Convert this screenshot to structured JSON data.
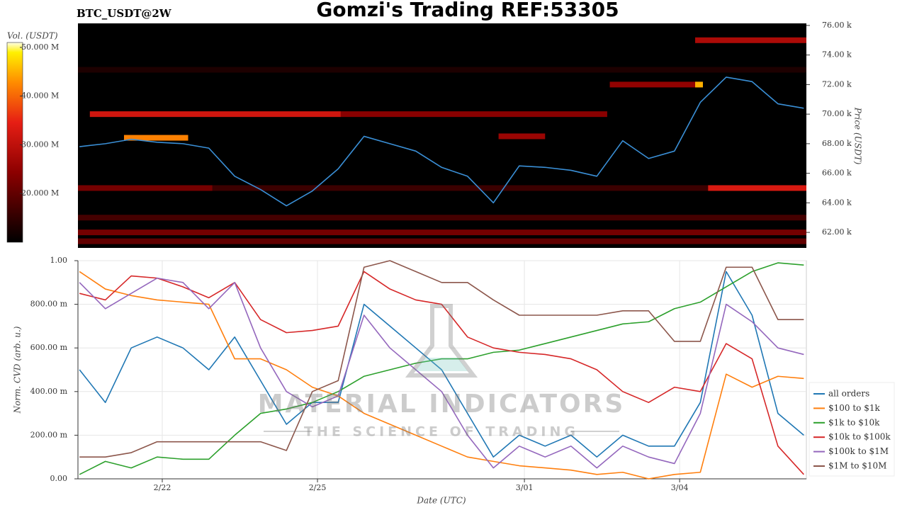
{
  "chart_data": [
    {
      "type": "heatmap",
      "title": "Gomzi's Trading REF:53305",
      "subtitle": "BTC_USDT@2W",
      "y_label": "Price (USDT)",
      "xlim": [
        -1.63,
        12.45
      ],
      "x": [
        -1.6,
        -1.1,
        -0.6,
        -0.1,
        0.4,
        0.9,
        1.4,
        1.9,
        2.4,
        2.9,
        3.4,
        3.9,
        4.4,
        4.9,
        5.4,
        5.9,
        6.4,
        6.9,
        7.4,
        7.9,
        8.4,
        8.9,
        9.4,
        9.9,
        10.4,
        10.9,
        11.4,
        11.9,
        12.4
      ],
      "series": [
        {
          "color": "#3a8fd6",
          "values": [
            67800,
            68000,
            68300,
            68100,
            68000,
            67700,
            65800,
            64900,
            63800,
            64800,
            66300,
            68500,
            68000,
            67500,
            66400,
            65800,
            64000,
            66500,
            66400,
            66200,
            65800,
            68200,
            67000,
            67500,
            70800,
            72500,
            72200,
            70700,
            70400
          ]
        }
      ],
      "ylim": [
        60950,
        76140
      ],
      "yticks": [
        {
          "value": 62000,
          "label": "62.00 k"
        },
        {
          "value": 64000,
          "label": "64.00 k"
        },
        {
          "value": 66000,
          "label": "66.00 k"
        },
        {
          "value": 68000,
          "label": "68.00 k"
        },
        {
          "value": 70000,
          "label": "70.00 k"
        },
        {
          "value": 72000,
          "label": "72.00 k"
        },
        {
          "value": 74000,
          "label": "74.00 k"
        },
        {
          "value": 76000,
          "label": "76.00 k"
        }
      ],
      "colorbar": {
        "label": "Vol. (USDT)",
        "lim": [
          10000000,
          51000000
        ],
        "ticks": [
          {
            "value": 20000000,
            "label": "20.000 M"
          },
          {
            "value": 30000000,
            "label": "30.000 M"
          },
          {
            "value": 40000000,
            "label": "40.000 M"
          },
          {
            "value": 50000000,
            "label": "50.000 M"
          }
        ]
      },
      "bands": [
        {
          "price": 70000,
          "from": -1.4,
          "to": 3.45,
          "volume": 32000000
        },
        {
          "price": 70000,
          "from": 3.45,
          "to": 8.6,
          "volume": 24000000
        },
        {
          "price": 75000,
          "from": 10.3,
          "to": 12.45,
          "volume": 28000000
        },
        {
          "price": 73000,
          "from": -1.63,
          "to": 12.45,
          "volume": 13000000
        },
        {
          "price": 72000,
          "from": 8.65,
          "to": 10.4,
          "volume": 25000000
        },
        {
          "price": 68500,
          "from": 6.5,
          "to": 7.4,
          "volume": 26000000
        },
        {
          "price": 68400,
          "from": -0.74,
          "to": 0.5,
          "volume": 42000000
        },
        {
          "price": 72000,
          "from": 10.3,
          "to": 10.45,
          "volume": 45000000
        },
        {
          "price": 65000,
          "from": -1.63,
          "to": 0.97,
          "volume": 22000000
        },
        {
          "price": 65000,
          "from": 0.97,
          "to": 10.55,
          "volume": 16000000
        },
        {
          "price": 65000,
          "from": 10.55,
          "to": 12.45,
          "volume": 33000000
        },
        {
          "price": 63000,
          "from": -1.63,
          "to": 12.45,
          "volume": 17000000
        },
        {
          "price": 62000,
          "from": -1.63,
          "to": 12.45,
          "volume": 22000000
        },
        {
          "price": 61400,
          "from": -1.63,
          "to": 12.45,
          "volume": 20000000
        }
      ]
    },
    {
      "type": "line",
      "x_label": "Date (UTC)",
      "y_label": "Norm. CVD (arb. u.)",
      "xlim": [
        -1.63,
        12.45
      ],
      "xticks": [
        {
          "value": 0,
          "label": "2/22"
        },
        {
          "value": 3,
          "label": "2/25"
        },
        {
          "value": 7,
          "label": "3/01"
        },
        {
          "value": 10,
          "label": "3/04"
        }
      ],
      "ylim": [
        0,
        1
      ],
      "yticks": [
        {
          "value": 0,
          "label": "0.00"
        },
        {
          "value": 0.2,
          "label": "200.00 m"
        },
        {
          "value": 0.4,
          "label": "400.00 m"
        },
        {
          "value": 0.6,
          "label": "600.00 m"
        },
        {
          "value": 0.8,
          "label": "800.00 m"
        },
        {
          "value": 1,
          "label": "1.00"
        }
      ],
      "grid": true,
      "legend": "right",
      "x": [
        -1.6,
        -1.1,
        -0.6,
        -0.1,
        0.4,
        0.9,
        1.4,
        1.9,
        2.4,
        2.9,
        3.4,
        3.9,
        4.4,
        4.9,
        5.4,
        5.9,
        6.4,
        6.9,
        7.4,
        7.9,
        8.4,
        8.9,
        9.4,
        9.9,
        10.4,
        10.9,
        11.4,
        11.9,
        12.4
      ],
      "series": [
        {
          "name": "all orders",
          "color": "#1f77b4",
          "values": [
            0.5,
            0.35,
            0.6,
            0.65,
            0.6,
            0.5,
            0.65,
            0.45,
            0.25,
            0.35,
            0.35,
            0.8,
            0.7,
            0.6,
            0.5,
            0.3,
            0.1,
            0.2,
            0.15,
            0.2,
            0.1,
            0.2,
            0.15,
            0.15,
            0.35,
            0.95,
            0.75,
            0.3,
            0.2
          ]
        },
        {
          "name": "$100 to $1k",
          "color": "#ff7f0e",
          "values": [
            0.95,
            0.87,
            0.84,
            0.82,
            0.81,
            0.8,
            0.55,
            0.55,
            0.5,
            0.42,
            0.38,
            0.3,
            0.25,
            0.2,
            0.15,
            0.1,
            0.08,
            0.06,
            0.05,
            0.04,
            0.02,
            0.03,
            0.0,
            0.02,
            0.03,
            0.48,
            0.42,
            0.47,
            0.46
          ]
        },
        {
          "name": "$1k to $10k",
          "color": "#2ca02c",
          "values": [
            0.02,
            0.08,
            0.05,
            0.1,
            0.09,
            0.09,
            0.2,
            0.3,
            0.32,
            0.35,
            0.4,
            0.47,
            0.5,
            0.53,
            0.55,
            0.55,
            0.58,
            0.59,
            0.62,
            0.65,
            0.68,
            0.71,
            0.72,
            0.78,
            0.81,
            0.88,
            0.95,
            0.99,
            0.98
          ]
        },
        {
          "name": "$10k to $100k",
          "color": "#d62728",
          "values": [
            0.85,
            0.82,
            0.93,
            0.92,
            0.88,
            0.83,
            0.9,
            0.73,
            0.67,
            0.68,
            0.7,
            0.95,
            0.87,
            0.82,
            0.8,
            0.65,
            0.6,
            0.58,
            0.57,
            0.55,
            0.5,
            0.4,
            0.35,
            0.42,
            0.4,
            0.62,
            0.55,
            0.15,
            0.02
          ]
        },
        {
          "name": "$100k to $1M",
          "color": "#9467bd",
          "values": [
            0.9,
            0.78,
            0.85,
            0.92,
            0.9,
            0.78,
            0.9,
            0.6,
            0.4,
            0.33,
            0.38,
            0.75,
            0.6,
            0.5,
            0.4,
            0.2,
            0.05,
            0.15,
            0.1,
            0.15,
            0.05,
            0.15,
            0.1,
            0.07,
            0.3,
            0.8,
            0.72,
            0.6,
            0.57
          ]
        },
        {
          "name": "$1M to $10M",
          "color": "#8c564b",
          "values": [
            0.1,
            0.1,
            0.12,
            0.17,
            0.17,
            0.17,
            0.17,
            0.17,
            0.13,
            0.4,
            0.45,
            0.97,
            1.0,
            0.95,
            0.9,
            0.9,
            0.82,
            0.75,
            0.75,
            0.75,
            0.75,
            0.77,
            0.77,
            0.63,
            0.63,
            0.97,
            0.97,
            0.73,
            0.73
          ]
        }
      ]
    }
  ],
  "watermark": {
    "title": "MATERIAL INDICATORS",
    "subtitle": "THE SCIENCE OF TRADING"
  }
}
